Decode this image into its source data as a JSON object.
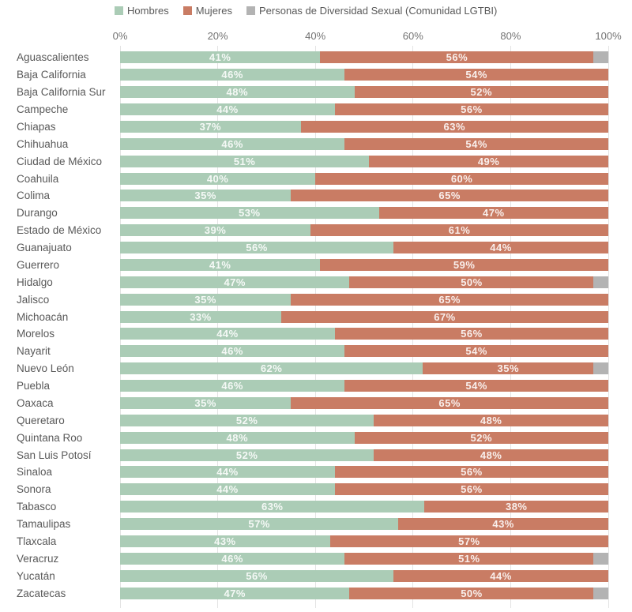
{
  "chart_data": {
    "type": "bar",
    "orientation": "horizontal",
    "stacked": true,
    "unit": "%",
    "title": "",
    "xlabel": "",
    "ylabel": "",
    "xlim": [
      0,
      100
    ],
    "x_ticks": [
      "0%",
      "20%",
      "40%",
      "60%",
      "80%",
      "100%"
    ],
    "grid": "vertical-light",
    "legend_position": "top",
    "legend": [
      {
        "name": "Hombres",
        "color": "#abccb6"
      },
      {
        "name": "Mujeres",
        "color": "#c97c64"
      },
      {
        "name": "Personas de Diversidad Sexual (Comunidad LGTBI)",
        "color": "#b3b3b3"
      }
    ],
    "categories": [
      "Aguascalientes",
      "Baja California",
      "Baja California Sur",
      "Campeche",
      "Chiapas",
      "Chihuahua",
      "Ciudad de México",
      "Coahuila",
      "Colima",
      "Durango",
      "Estado de México",
      "Guanajuato",
      "Guerrero",
      "Hidalgo",
      "Jalisco",
      "Michoacán",
      "Morelos",
      "Nayarit",
      "Nuevo León",
      "Puebla",
      "Oaxaca",
      "Queretaro",
      "Quintana Roo",
      "San Luis Potosí",
      "Sinaloa",
      "Sonora",
      "Tabasco",
      "Tamaulipas",
      "Tlaxcala",
      "Veracruz",
      "Yucatán",
      "Zacatecas"
    ],
    "series": [
      {
        "name": "Hombres",
        "values": [
          41,
          46,
          48,
          44,
          37,
          46,
          51,
          40,
          35,
          53,
          39,
          56,
          41,
          47,
          35,
          33,
          44,
          46,
          62,
          46,
          35,
          52,
          48,
          52,
          44,
          44,
          63,
          57,
          43,
          46,
          56,
          47
        ]
      },
      {
        "name": "Mujeres",
        "values": [
          56,
          54,
          52,
          56,
          63,
          54,
          49,
          60,
          65,
          47,
          61,
          44,
          59,
          50,
          65,
          67,
          56,
          54,
          35,
          54,
          65,
          48,
          52,
          48,
          56,
          56,
          38,
          43,
          57,
          51,
          44,
          50
        ]
      },
      {
        "name": "Personas de Diversidad Sexual (Comunidad LGTBI)",
        "values": [
          3,
          0,
          0,
          0,
          0,
          0,
          0,
          0,
          0,
          0,
          0,
          0,
          0,
          3,
          0,
          0,
          0,
          0,
          3,
          0,
          0,
          0,
          0,
          0,
          0,
          0,
          0,
          0,
          0,
          3,
          0,
          3
        ]
      }
    ]
  },
  "colors": {
    "background": "#ffffff",
    "category_label": "#595959",
    "axis_label": "#737373",
    "gridline": "#e3e3e3",
    "value_label": "#ffffff"
  }
}
